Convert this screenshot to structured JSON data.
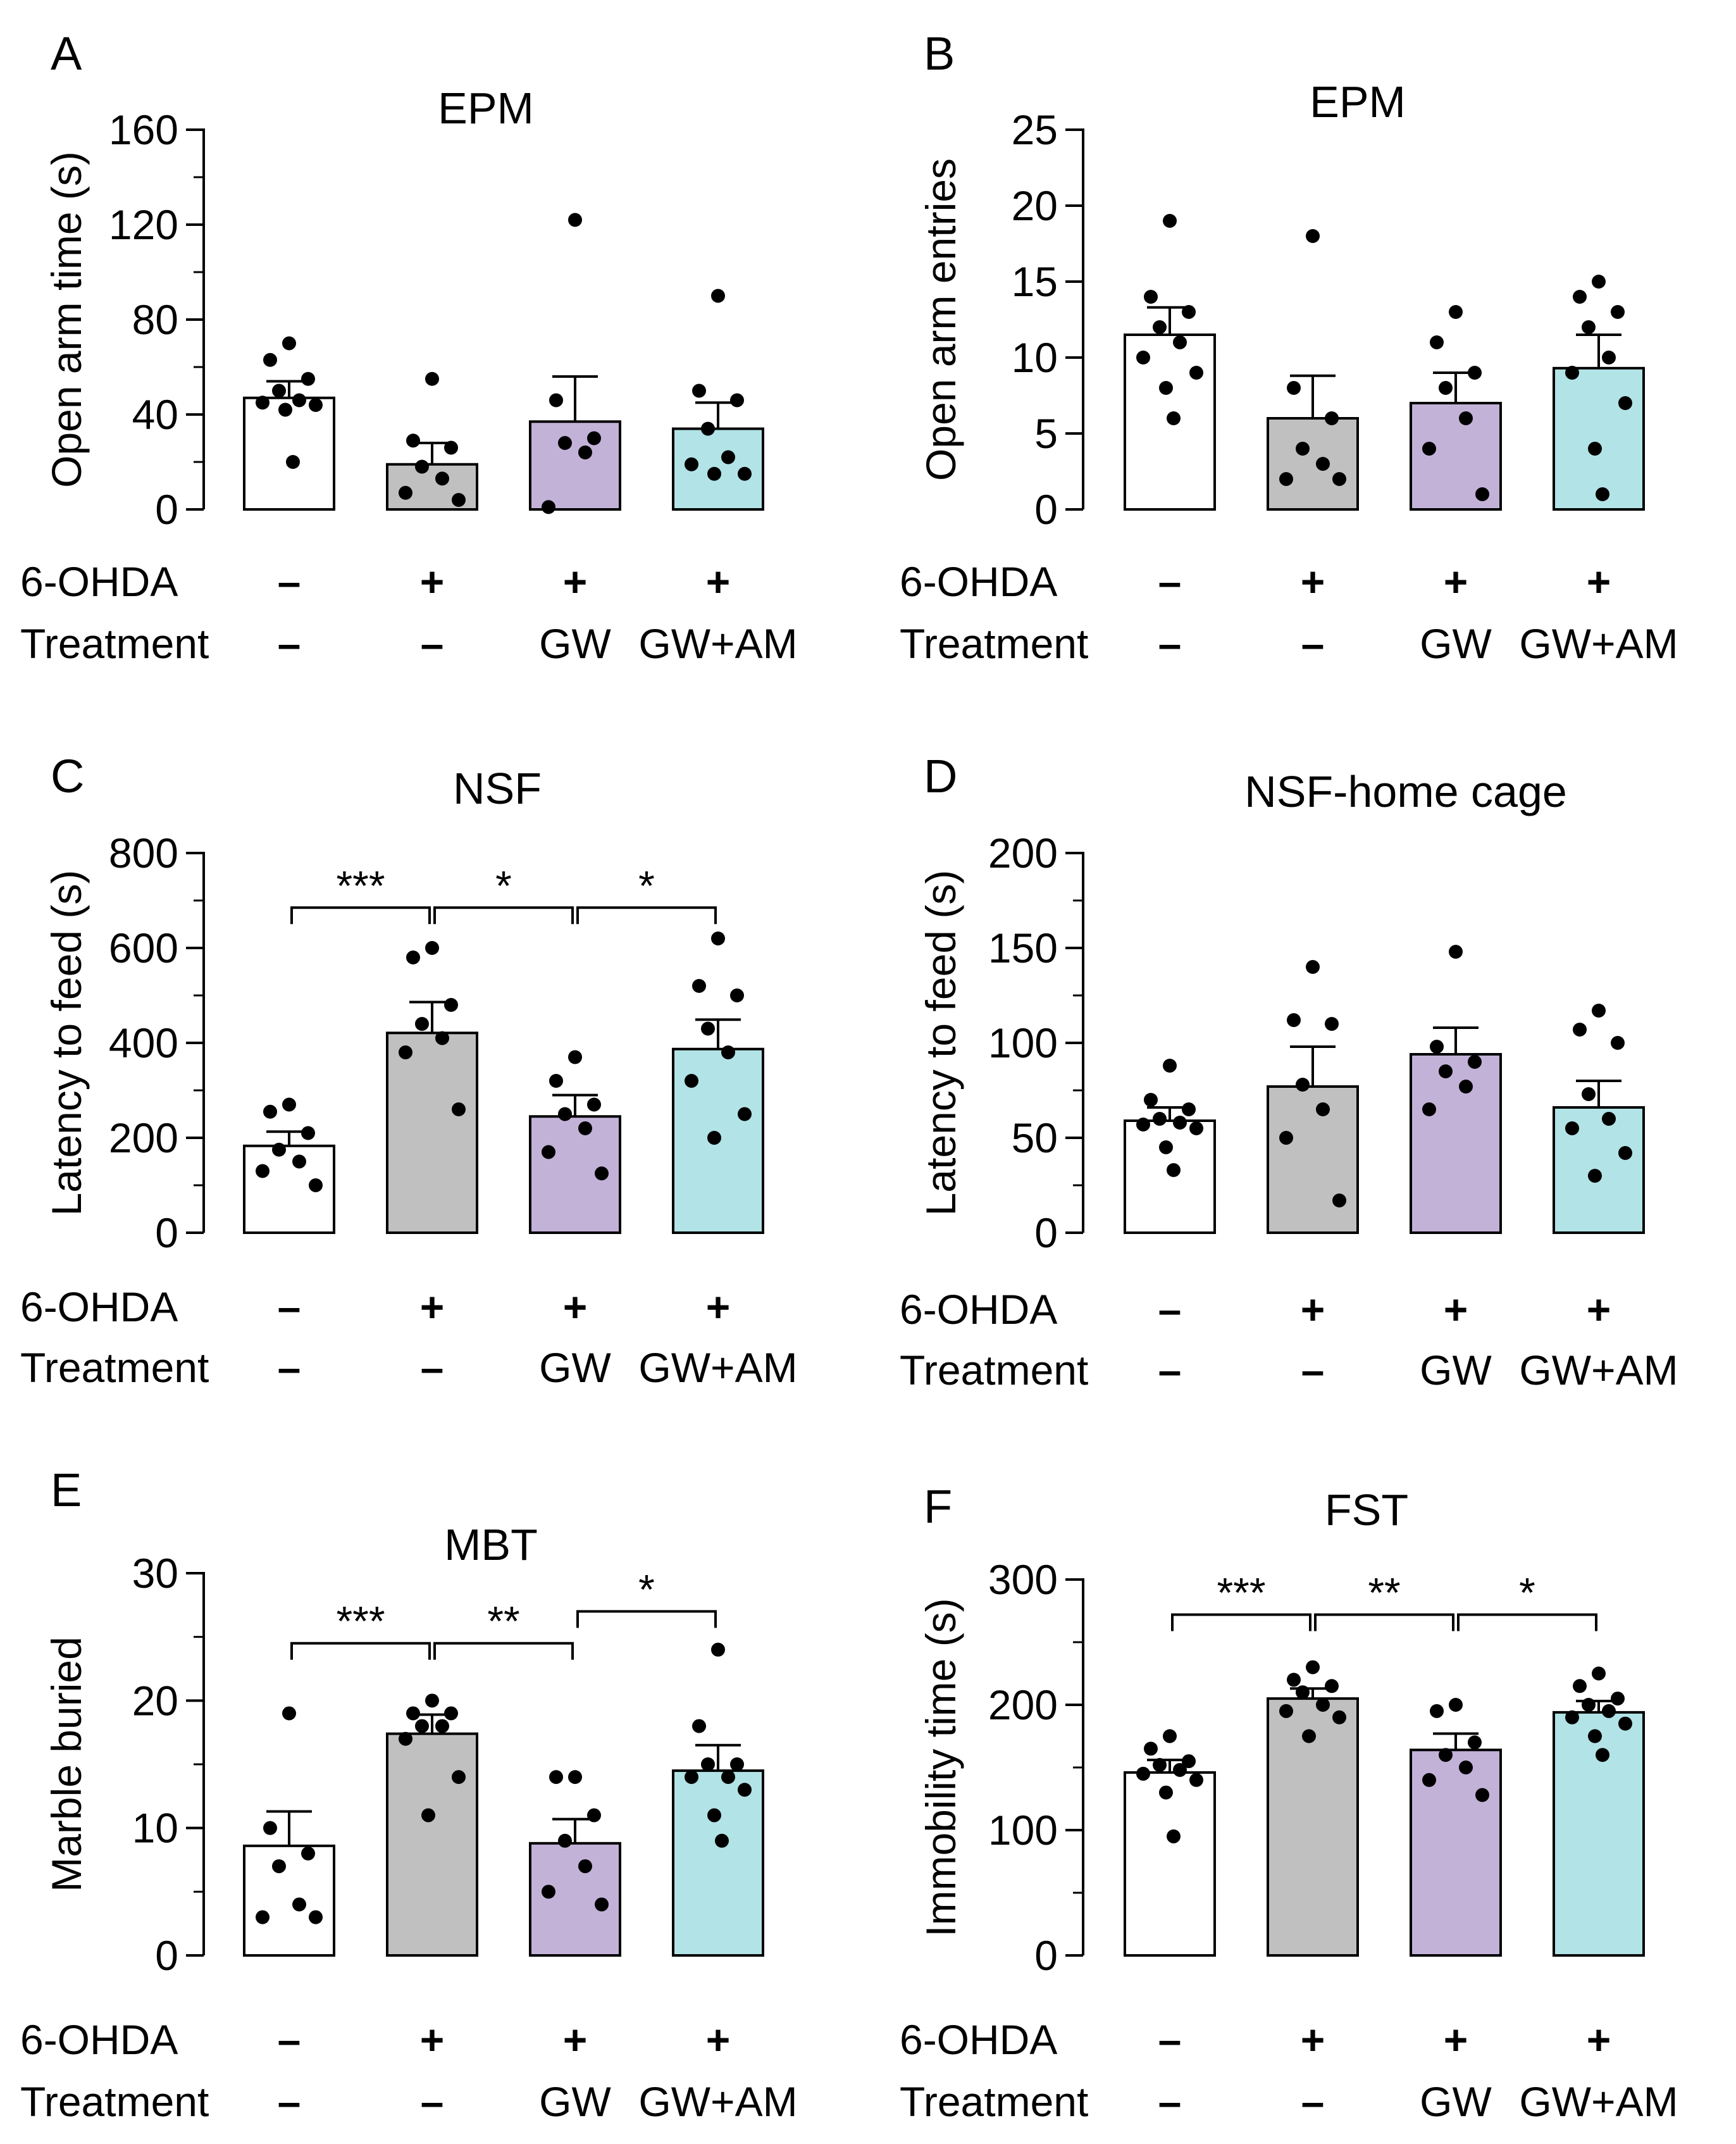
{
  "figure": {
    "row_labels": {
      "lesion": "6-OHDA",
      "treatment": "Treatment"
    },
    "groups": [
      {
        "lesion": "–",
        "treatment": "–",
        "color": "#ffffff"
      },
      {
        "lesion": "+",
        "treatment": "–",
        "color": "#c0c0c0"
      },
      {
        "lesion": "+",
        "treatment": "GW",
        "color": "#c3b2d8"
      },
      {
        "lesion": "+",
        "treatment": "GW+AM",
        "color": "#b2e3e6"
      }
    ]
  },
  "chart_data": [
    {
      "panel": "A",
      "type": "bar",
      "title": "EPM",
      "ylabel": "Open arm time (s)",
      "ylim": [
        0,
        160
      ],
      "yticks": [
        0,
        40,
        80,
        120,
        160
      ],
      "ytick_labels": [
        "0",
        "40",
        "80",
        "120",
        "160"
      ],
      "minor_step": 20,
      "categories": [
        "–/–",
        "+/–",
        "+/GW",
        "+/GW+AM"
      ],
      "values": [
        47,
        19,
        37,
        34
      ],
      "errors": [
        7,
        9,
        19,
        11
      ],
      "points": [
        [
          70,
          63,
          55,
          50,
          46,
          45,
          44,
          42,
          20
        ],
        [
          55,
          29,
          26,
          18,
          13,
          7,
          4
        ],
        [
          122,
          46,
          30,
          28,
          24,
          1
        ],
        [
          90,
          50,
          46,
          34,
          22,
          19,
          15,
          15
        ]
      ],
      "significance": []
    },
    {
      "panel": "B",
      "type": "bar",
      "title": "EPM",
      "ylabel": "Open arm entries",
      "ylim": [
        0,
        25
      ],
      "yticks": [
        0,
        5,
        10,
        15,
        20,
        25
      ],
      "ytick_labels": [
        "0",
        "5",
        "10",
        "15",
        "20",
        "25"
      ],
      "minor_step": 0,
      "categories": [
        "–/–",
        "+/–",
        "+/GW",
        "+/GW+AM"
      ],
      "values": [
        11.5,
        6,
        7,
        9.3
      ],
      "errors": [
        1.8,
        2.8,
        2,
        2.2
      ],
      "points": [
        [
          19,
          14,
          13,
          12,
          11,
          10,
          9,
          8,
          6
        ],
        [
          18,
          8,
          6,
          4,
          3,
          2,
          2
        ],
        [
          13,
          11,
          9,
          8,
          6,
          4,
          1
        ],
        [
          15,
          14,
          13,
          12,
          10,
          9,
          7,
          4,
          1
        ]
      ],
      "significance": []
    },
    {
      "panel": "C",
      "type": "bar",
      "title": "NSF",
      "ylabel": "Latency to feed (s)",
      "ylim": [
        0,
        800
      ],
      "yticks": [
        0,
        200,
        400,
        600,
        800
      ],
      "ytick_labels": [
        "0",
        "200",
        "400",
        "600",
        "800"
      ],
      "minor_step": 100,
      "categories": [
        "–/–",
        "+/–",
        "+/GW",
        "+/GW+AM"
      ],
      "values": [
        183,
        421,
        245,
        387
      ],
      "errors": [
        30,
        65,
        45,
        62
      ],
      "points": [
        [
          270,
          255,
          210,
          175,
          150,
          130,
          100
        ],
        [
          600,
          580,
          480,
          440,
          410,
          380,
          260
        ],
        [
          370,
          320,
          270,
          250,
          220,
          170,
          125
        ],
        [
          620,
          520,
          500,
          430,
          380,
          320,
          250,
          200
        ]
      ],
      "significance": [
        {
          "from": 0,
          "to": 1,
          "label": "***",
          "y": 685
        },
        {
          "from": 1,
          "to": 2,
          "label": "*",
          "y": 685
        },
        {
          "from": 2,
          "to": 3,
          "label": "*",
          "y": 685
        }
      ]
    },
    {
      "panel": "D",
      "type": "bar",
      "title": "NSF-home cage",
      "ylabel": "Latency to feed (s)",
      "ylim": [
        0,
        200
      ],
      "yticks": [
        0,
        50,
        100,
        150,
        200
      ],
      "ytick_labels": [
        "0",
        "50",
        "100",
        "150",
        "200"
      ],
      "minor_step": 25,
      "categories": [
        "–/–",
        "+/–",
        "+/GW",
        "+/GW+AM"
      ],
      "values": [
        59,
        77,
        94,
        66
      ],
      "errors": [
        7,
        21,
        14,
        14
      ],
      "points": [
        [
          88,
          70,
          65,
          60,
          58,
          57,
          55,
          45,
          33
        ],
        [
          140,
          112,
          110,
          78,
          65,
          50,
          17
        ],
        [
          148,
          98,
          90,
          85,
          77,
          65
        ],
        [
          117,
          107,
          100,
          73,
          60,
          55,
          42,
          30
        ]
      ],
      "significance": []
    },
    {
      "panel": "E",
      "type": "bar",
      "title": "MBT",
      "ylabel": "Marble buried",
      "ylim": [
        0,
        30
      ],
      "yticks": [
        0,
        10,
        20,
        30
      ],
      "ytick_labels": [
        "0",
        "10",
        "20",
        "30"
      ],
      "minor_step": 5,
      "categories": [
        "–/–",
        "+/–",
        "+/GW",
        "+/GW+AM"
      ],
      "values": [
        8.6,
        17.4,
        8.8,
        14.5
      ],
      "errors": [
        2.7,
        1.5,
        1.9,
        2
      ],
      "points": [
        [
          19,
          10,
          8,
          7,
          4,
          3,
          3
        ],
        [
          20,
          19,
          19,
          18,
          18,
          17,
          14,
          11
        ],
        [
          14,
          14,
          11,
          9,
          7,
          5,
          4
        ],
        [
          24,
          18,
          15,
          15,
          14,
          14,
          13,
          11,
          9
        ]
      ],
      "significance": [
        {
          "from": 0,
          "to": 1,
          "label": "***",
          "y": 24.5
        },
        {
          "from": 1,
          "to": 2,
          "label": "**",
          "y": 24.5
        },
        {
          "from": 2,
          "to": 3,
          "label": "*",
          "y": 27
        }
      ]
    },
    {
      "panel": "F",
      "type": "bar",
      "title": "FST",
      "ylabel": "Immobility time (s)",
      "ylim": [
        0,
        300
      ],
      "yticks": [
        0,
        100,
        200,
        300
      ],
      "ytick_labels": [
        "0",
        "100",
        "200",
        "300"
      ],
      "minor_step": 50,
      "categories": [
        "–/–",
        "+/–",
        "+/GW",
        "+/GW+AM"
      ],
      "values": [
        146,
        205,
        164,
        194
      ],
      "errors": [
        10,
        8,
        13,
        9
      ],
      "points": [
        [
          175,
          165,
          155,
          152,
          148,
          145,
          140,
          130,
          95
        ],
        [
          230,
          220,
          215,
          210,
          200,
          195,
          190,
          175
        ],
        [
          200,
          195,
          170,
          160,
          150,
          140,
          128
        ],
        [
          225,
          215,
          205,
          200,
          195,
          190,
          185,
          175,
          160
        ]
      ],
      "significance": [
        {
          "from": 0,
          "to": 1,
          "label": "***",
          "y": 272
        },
        {
          "from": 1,
          "to": 2,
          "label": "**",
          "y": 272
        },
        {
          "from": 2,
          "to": 3,
          "label": "*",
          "y": 272
        }
      ]
    }
  ]
}
